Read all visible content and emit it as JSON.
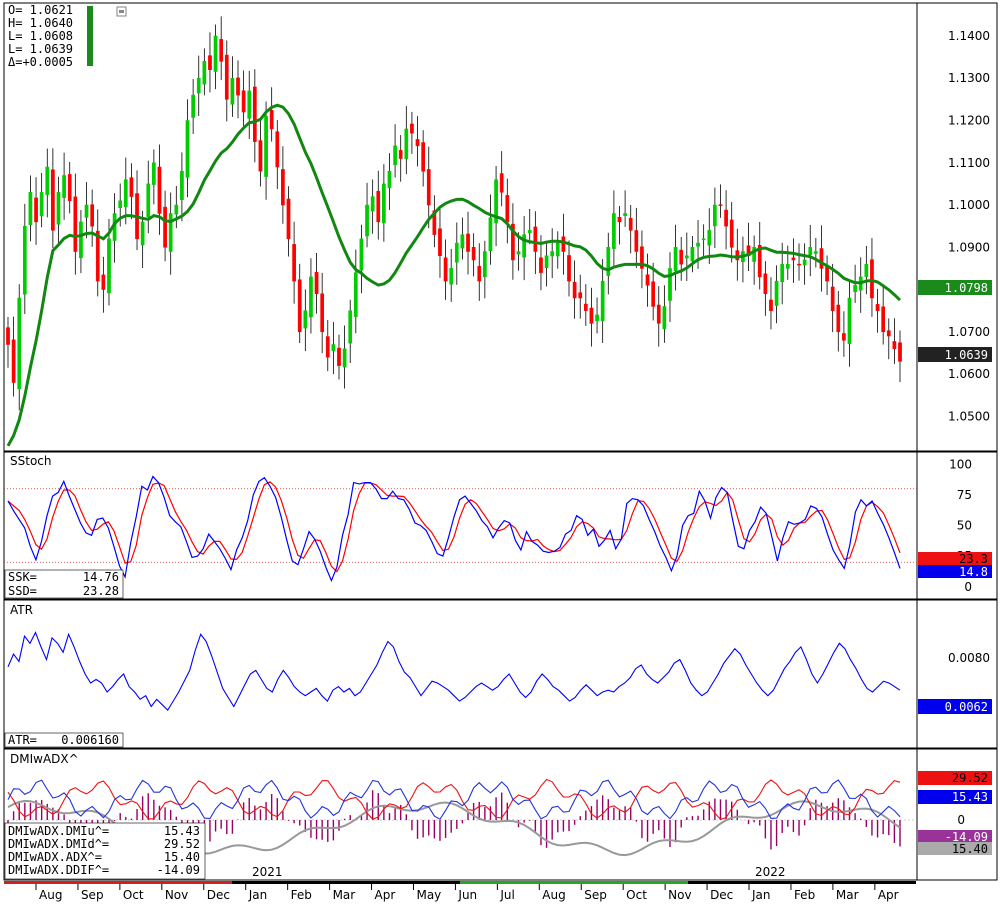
{
  "chart_data": {
    "type": "candlestick",
    "price_panel": {
      "ohlc_readout": {
        "open": "O= 1.0621",
        "high": "H= 1.0640",
        "low1": "L= 1.0608",
        "low2": "L= 1.0639",
        "delta": "Δ=+0.0005"
      },
      "y_ticks": [
        "1.1400",
        "1.1300",
        "1.1200",
        "1.1100",
        "1.1000",
        "1.0900",
        "1.0700",
        "1.0600",
        "1.0500"
      ],
      "ylim": [
        1.0418,
        1.1478
      ],
      "ma_value": "1.0798",
      "last_value": "1.0639",
      "closes": [
        1.067,
        1.058,
        1.078,
        1.095,
        1.103,
        1.096,
        1.103,
        1.109,
        1.094,
        1.103,
        1.107,
        1.101,
        1.089,
        1.096,
        1.1,
        1.095,
        1.082,
        1.08,
        1.092,
        1.098,
        1.101,
        1.106,
        1.102,
        1.092,
        1.096,
        1.105,
        1.11,
        1.098,
        1.09,
        1.098,
        1.1,
        1.108,
        1.12,
        1.126,
        1.13,
        1.134,
        1.132,
        1.14,
        1.134,
        1.125,
        1.13,
        1.126,
        1.122,
        1.127,
        1.115,
        1.108,
        1.121,
        1.118,
        1.109,
        1.1,
        1.092,
        1.082,
        1.07,
        1.075,
        1.083,
        1.079,
        1.07,
        1.064,
        1.067,
        1.062,
        1.066,
        1.075,
        1.084,
        1.092,
        1.1,
        1.102,
        1.096,
        1.105,
        1.108,
        1.114,
        1.111,
        1.118,
        1.117,
        1.114,
        1.108,
        1.1,
        1.093,
        1.088,
        1.082,
        1.085,
        1.091,
        1.093,
        1.089,
        1.087,
        1.082,
        1.089,
        1.097,
        1.106,
        1.103,
        1.096,
        1.087,
        1.089,
        1.093,
        1.094,
        1.089,
        1.084,
        1.088,
        1.089,
        1.091,
        1.089,
        1.082,
        1.078,
        1.078,
        1.075,
        1.072,
        1.074,
        1.082,
        1.09,
        1.098,
        1.096,
        1.098,
        1.094,
        1.089,
        1.085,
        1.081,
        1.076,
        1.072,
        1.076,
        1.085,
        1.09,
        1.086,
        1.088,
        1.09,
        1.091,
        1.092,
        1.094,
        1.1,
        1.1,
        1.095,
        1.09,
        1.087,
        1.089,
        1.088,
        1.09,
        1.083,
        1.079,
        1.075,
        1.082,
        1.086,
        1.086,
        1.087,
        1.086,
        1.087,
        1.09,
        1.089,
        1.085,
        1.082,
        1.075,
        1.07,
        1.068,
        1.078,
        1.081,
        1.083,
        1.086,
        1.078,
        1.075,
        1.07,
        1.069,
        1.066,
        1.063
      ]
    },
    "sstoch_panel": {
      "title": "SStoch",
      "y_ticks": [
        "100",
        "75",
        "50",
        "25",
        "0"
      ],
      "ylim": [
        -10,
        110
      ],
      "ref_lines": [
        80,
        20
      ],
      "ssk_value": "14.8",
      "ssd_value": "23.3",
      "readout": [
        {
          "label": "SSK=",
          "value": "14.76"
        },
        {
          "label": "SSD=",
          "value": "23.28"
        }
      ],
      "ssk": [
        70,
        62,
        55,
        48,
        33,
        22,
        37,
        58,
        74,
        77,
        86,
        74,
        63,
        52,
        44,
        42,
        55,
        56,
        48,
        33,
        17,
        8,
        36,
        57,
        82,
        79,
        90,
        85,
        73,
        58,
        53,
        49,
        37,
        24,
        25,
        31,
        43,
        37,
        31,
        23,
        14,
        30,
        40,
        54,
        75,
        86,
        89,
        82,
        73,
        57,
        38,
        21,
        18,
        31,
        45,
        39,
        29,
        16,
        5,
        16,
        42,
        59,
        85,
        84,
        85,
        85,
        80,
        72,
        72,
        78,
        72,
        71,
        63,
        52,
        50,
        46,
        37,
        27,
        25,
        40,
        57,
        71,
        74,
        68,
        62,
        54,
        49,
        40,
        48,
        54,
        52,
        38,
        30,
        45,
        37,
        34,
        29,
        28,
        29,
        32,
        43,
        46,
        58,
        55,
        42,
        47,
        33,
        38,
        46,
        31,
        39,
        68,
        72,
        71,
        66,
        55,
        45,
        33,
        24,
        13,
        25,
        50,
        58,
        60,
        78,
        70,
        56,
        73,
        81,
        77,
        54,
        33,
        31,
        46,
        53,
        65,
        60,
        41,
        21,
        40,
        53,
        51,
        52,
        55,
        66,
        64,
        57,
        43,
        30,
        22,
        15,
        34,
        61,
        71,
        66,
        70,
        60,
        51,
        40,
        28,
        15
      ]
    },
    "atr_panel": {
      "title": "ATR",
      "y_ticks": [
        "0.0080"
      ],
      "ylim": [
        0.003,
        0.0112
      ],
      "value": "0.0062",
      "readout": {
        "label": "ATR=",
        "value": "0.006160"
      },
      "values": [
        0.0075,
        0.0082,
        0.0078,
        0.0092,
        0.0088,
        0.0094,
        0.0086,
        0.0079,
        0.0091,
        0.0088,
        0.0083,
        0.0093,
        0.0086,
        0.0078,
        0.0071,
        0.0066,
        0.0068,
        0.0066,
        0.0061,
        0.0064,
        0.0068,
        0.0071,
        0.0064,
        0.0061,
        0.0057,
        0.0059,
        0.0053,
        0.0057,
        0.0054,
        0.0051,
        0.0056,
        0.0061,
        0.0067,
        0.0073,
        0.0084,
        0.0093,
        0.0089,
        0.0081,
        0.0072,
        0.0063,
        0.0058,
        0.0053,
        0.0059,
        0.0065,
        0.0071,
        0.0073,
        0.0068,
        0.0063,
        0.0061,
        0.0068,
        0.0073,
        0.0069,
        0.0064,
        0.0061,
        0.0059,
        0.0061,
        0.0063,
        0.0059,
        0.0056,
        0.0062,
        0.0064,
        0.0061,
        0.0063,
        0.0059,
        0.0061,
        0.0066,
        0.0071,
        0.0076,
        0.0083,
        0.0089,
        0.0086,
        0.0078,
        0.0072,
        0.0069,
        0.0064,
        0.0059,
        0.0063,
        0.0067,
        0.0066,
        0.0064,
        0.0062,
        0.0059,
        0.0056,
        0.0058,
        0.0061,
        0.0064,
        0.0066,
        0.0064,
        0.0062,
        0.0064,
        0.0068,
        0.0071,
        0.0066,
        0.0061,
        0.0058,
        0.0061,
        0.0067,
        0.0071,
        0.0068,
        0.0064,
        0.0062,
        0.0059,
        0.0056,
        0.0058,
        0.0062,
        0.0065,
        0.0062,
        0.0059,
        0.0061,
        0.0062,
        0.0061,
        0.0064,
        0.0066,
        0.0069,
        0.0074,
        0.0076,
        0.0071,
        0.0068,
        0.0066,
        0.0069,
        0.0072,
        0.0077,
        0.0079,
        0.0073,
        0.0066,
        0.0062,
        0.0059,
        0.0061,
        0.0066,
        0.0071,
        0.0077,
        0.0081,
        0.0085,
        0.0082,
        0.0076,
        0.0071,
        0.0066,
        0.0062,
        0.0059,
        0.0062,
        0.0068,
        0.0074,
        0.0078,
        0.0083,
        0.0086,
        0.0079,
        0.0071,
        0.0066,
        0.0071,
        0.0077,
        0.0083,
        0.0088,
        0.0085,
        0.0079,
        0.0074,
        0.0068,
        0.0063,
        0.0061,
        0.0064,
        0.0067,
        0.0066,
        0.0064,
        0.0062
      ]
    },
    "dmi_panel": {
      "title": "DMIwADX^",
      "y_ticks": [
        "0"
      ],
      "dmi_plus_value": "15.43",
      "dmi_minus_value": "29.52",
      "ddif_value": "-14.09",
      "adx_value": "15.40",
      "readout": [
        {
          "label": "DMIwADX.DMIu^=",
          "value": "15.43"
        },
        {
          "label": "DMIwADX.DMId^=",
          "value": "29.52"
        },
        {
          "label": "DMIwADX.ADX^=",
          "value": "15.40"
        },
        {
          "label": "DMIwADX.DDIF^=",
          "value": "-14.09"
        }
      ]
    },
    "x_axis": {
      "months": [
        "Aug",
        "Sep",
        "Oct",
        "Nov",
        "Dec",
        "Jan",
        "Feb",
        "Mar",
        "Apr",
        "May",
        "Jun",
        "Jul",
        "Aug",
        "Sep",
        "Oct",
        "Nov",
        "Dec",
        "Jan",
        "Feb",
        "Mar",
        "Apr"
      ],
      "years": [
        "2021",
        "2022"
      ]
    },
    "colors": {
      "up": "#00cc00",
      "down": "#ff0000",
      "ma": "#118811",
      "ssk": "#0000ff",
      "ssd": "#ff0000",
      "atr": "#0000ff",
      "dmi_plus": "#2233dd",
      "dmi_minus": "#ee1111",
      "adx": "#999999",
      "hist": "#990066"
    }
  }
}
